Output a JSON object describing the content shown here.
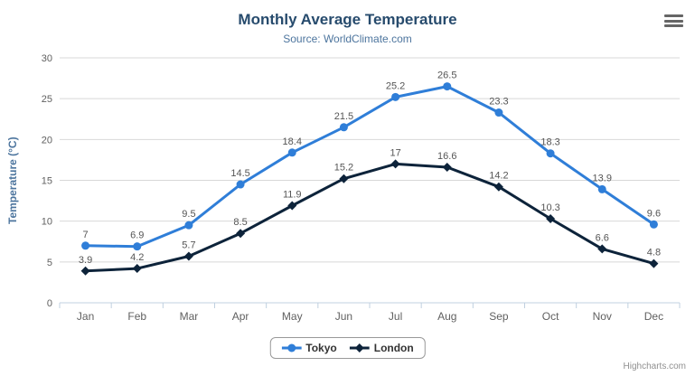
{
  "credits": "Highcharts.com",
  "icons": {
    "context_menu": "hamburger-menu-icon"
  },
  "colors": {
    "background": "#ffffff",
    "title": "#274b6d",
    "subtitle": "#4d759e",
    "axis_title": "#4d759e",
    "axis_labels": "#606060",
    "data_labels": "#555555",
    "grid": "#d8d8d8",
    "axis_line": "#c0d0e0",
    "legend_border": "#999999",
    "legend_text": "#333333",
    "credits": "#909090",
    "menu_icon": "#666666",
    "series_tokyo": "#2f7ed8",
    "series_london": "#0d233a"
  },
  "chart_data": {
    "type": "line",
    "title": "Monthly Average Temperature",
    "subtitle": "Source: WorldClimate.com",
    "xlabel": "",
    "ylabel": "Temperature (°C)",
    "categories": [
      "Jan",
      "Feb",
      "Mar",
      "Apr",
      "May",
      "Jun",
      "Jul",
      "Aug",
      "Sep",
      "Oct",
      "Nov",
      "Dec"
    ],
    "series": [
      {
        "name": "Tokyo",
        "color": "#2f7ed8",
        "marker": "circle",
        "values": [
          7,
          6.9,
          9.5,
          14.5,
          18.4,
          21.5,
          25.2,
          26.5,
          23.3,
          18.3,
          13.9,
          9.6
        ]
      },
      {
        "name": "London",
        "color": "#0d233a",
        "marker": "diamond",
        "values": [
          3.9,
          4.2,
          5.7,
          8.5,
          11.9,
          15.2,
          17,
          16.6,
          14.2,
          10.3,
          6.6,
          4.8
        ]
      }
    ],
    "ylim": [
      0,
      30
    ],
    "y_tick_interval": 5,
    "grid": true,
    "data_labels": true,
    "legend_position": "bottom"
  }
}
